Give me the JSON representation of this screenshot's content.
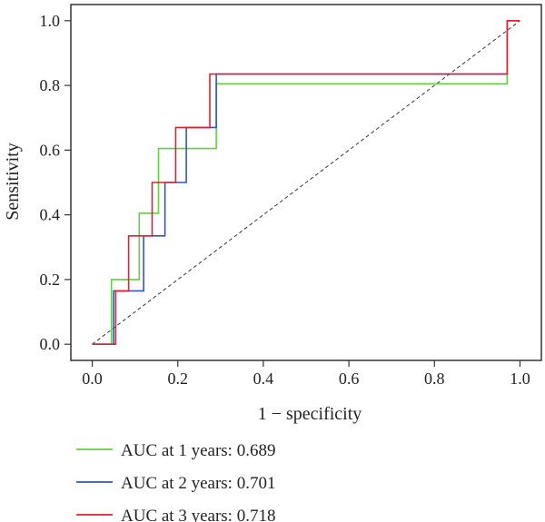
{
  "chart_data": {
    "type": "line",
    "title": "",
    "xlabel": "1 − specificity",
    "ylabel": "Sensitivity",
    "xlim": [
      -0.05,
      1.05
    ],
    "ylim": [
      -0.05,
      1.05
    ],
    "x_ticks": [
      "0.0",
      "0.2",
      "0.4",
      "0.6",
      "0.8",
      "1.0"
    ],
    "y_ticks": [
      "0.0",
      "0.2",
      "0.4",
      "0.6",
      "0.8",
      "1.0"
    ],
    "grid": false,
    "legend_position": "bottom-left",
    "reference_line": {
      "style": "dashed",
      "color": "#333333",
      "points": [
        [
          0,
          0
        ],
        [
          1,
          1
        ]
      ]
    },
    "series": [
      {
        "name": "AUC at 1 years: 0.689",
        "color": "#66cc44",
        "points": [
          [
            0,
            0
          ],
          [
            0.045,
            0
          ],
          [
            0.045,
            0.2
          ],
          [
            0.11,
            0.2
          ],
          [
            0.11,
            0.405
          ],
          [
            0.155,
            0.405
          ],
          [
            0.155,
            0.605
          ],
          [
            0.29,
            0.605
          ],
          [
            0.29,
            0.805
          ],
          [
            0.97,
            0.805
          ],
          [
            0.97,
            1.0
          ],
          [
            1.0,
            1.0
          ]
        ]
      },
      {
        "name": "AUC at 2 years: 0.701",
        "color": "#3355bb",
        "points": [
          [
            0,
            0
          ],
          [
            0.05,
            0
          ],
          [
            0.05,
            0.165
          ],
          [
            0.12,
            0.165
          ],
          [
            0.12,
            0.335
          ],
          [
            0.17,
            0.335
          ],
          [
            0.17,
            0.5
          ],
          [
            0.22,
            0.5
          ],
          [
            0.22,
            0.67
          ],
          [
            0.29,
            0.67
          ],
          [
            0.29,
            0.835
          ],
          [
            0.97,
            0.835
          ],
          [
            0.97,
            1.0
          ],
          [
            1.0,
            1.0
          ]
        ]
      },
      {
        "name": "AUC at 3 years: 0.718",
        "color": "#dd2233",
        "points": [
          [
            0,
            0
          ],
          [
            0.055,
            0
          ],
          [
            0.055,
            0.165
          ],
          [
            0.085,
            0.165
          ],
          [
            0.085,
            0.335
          ],
          [
            0.14,
            0.335
          ],
          [
            0.14,
            0.5
          ],
          [
            0.195,
            0.5
          ],
          [
            0.195,
            0.67
          ],
          [
            0.275,
            0.67
          ],
          [
            0.275,
            0.835
          ],
          [
            0.97,
            0.835
          ],
          [
            0.97,
            1.0
          ],
          [
            1.0,
            1.0
          ]
        ]
      }
    ]
  }
}
